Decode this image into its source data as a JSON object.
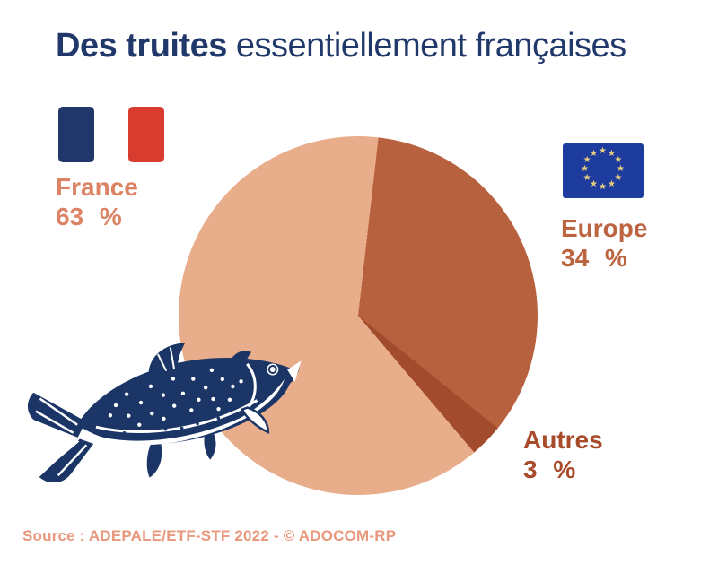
{
  "title": {
    "bold": "Des truites",
    "regular": "essentiellement françaises"
  },
  "colors": {
    "background": "#FFFFFF",
    "title": "#21386B",
    "source": "#E8987C"
  },
  "flags": {
    "france": {
      "blue": "#21376B",
      "white": "#FFFFFF",
      "red": "#D73C2E"
    },
    "eu": {
      "background": "#1E3C9E",
      "star_color": "#E9CE7E",
      "star_count": 12
    }
  },
  "callouts": [
    {
      "id": "france",
      "name": "France",
      "value": "63 %",
      "color": "#DC8365"
    },
    {
      "id": "europe",
      "name": "Europe",
      "value": "34 %",
      "color": "#BC6340"
    },
    {
      "id": "autres",
      "name": "Autres",
      "value": "3 %",
      "color": "#A74B2B"
    }
  ],
  "fish": {
    "label": "trout-illustration",
    "color": "#1B3666"
  },
  "source_text": "Source : ADEPALE/ETF-STF 2022 - © ADOCOM-RP",
  "chart_data": {
    "type": "pie",
    "title": "Des truites essentiellement françaises",
    "categories": [
      "France",
      "Europe",
      "Autres"
    ],
    "values": [
      63,
      34,
      3
    ],
    "unit": "%",
    "colors": [
      "#E8AD8A",
      "#B7613E",
      "#A24B2D"
    ],
    "start_angle_deg": 139.7,
    "direction": "clockwise",
    "legend_position": "around",
    "source": "ADEPALE/ETF-STF 2022 - © ADOCOM-RP"
  }
}
